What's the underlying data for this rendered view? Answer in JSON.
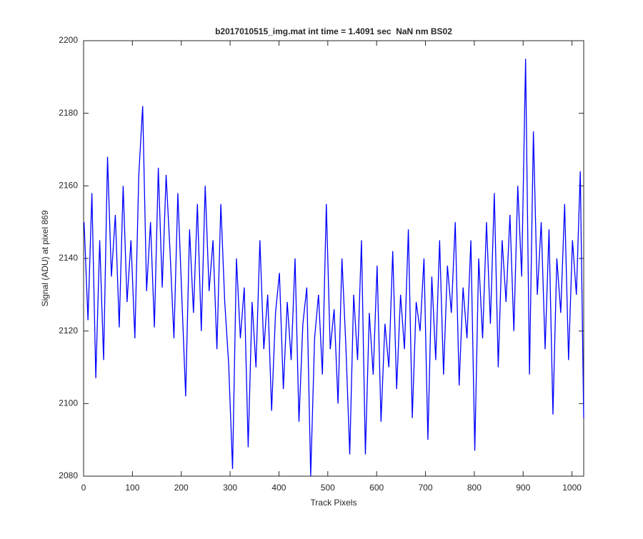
{
  "chart_data": {
    "type": "line",
    "title": "b2017010515_img.mat int time = 1.4091 sec  NaN nm BS02",
    "x_label": "Track Pixels",
    "y_label": "Signal (ADU) at pixel 869",
    "x": [
      1,
      9,
      17,
      25,
      33,
      41,
      49,
      57,
      65,
      73,
      81,
      89,
      97,
      105,
      113,
      121,
      129,
      137,
      145,
      153,
      161,
      169,
      177,
      185,
      193,
      201,
      209,
      217,
      225,
      233,
      241,
      249,
      257,
      265,
      273,
      281,
      289,
      297,
      305,
      313,
      321,
      329,
      337,
      345,
      353,
      361,
      369,
      377,
      385,
      393,
      401,
      409,
      417,
      425,
      433,
      441,
      449,
      457,
      465,
      473,
      481,
      489,
      497,
      505,
      513,
      521,
      529,
      537,
      545,
      553,
      561,
      569,
      577,
      585,
      593,
      601,
      609,
      617,
      625,
      633,
      641,
      649,
      657,
      665,
      673,
      681,
      689,
      697,
      705,
      713,
      721,
      729,
      737,
      745,
      753,
      761,
      769,
      777,
      785,
      793,
      801,
      809,
      817,
      825,
      833,
      841,
      849,
      857,
      865,
      873,
      881,
      889,
      897,
      905,
      913,
      921,
      929,
      937,
      945,
      953,
      961,
      969,
      977,
      985,
      993,
      1001,
      1009,
      1017,
      1024
    ],
    "values": [
      2150,
      2123,
      2158,
      2107,
      2145,
      2112,
      2168,
      2135,
      2152,
      2121,
      2160,
      2128,
      2145,
      2118,
      2163,
      2182,
      2131,
      2150,
      2121,
      2165,
      2132,
      2163,
      2142,
      2118,
      2158,
      2130,
      2102,
      2148,
      2125,
      2155,
      2120,
      2160,
      2131,
      2145,
      2115,
      2155,
      2128,
      2111,
      2082,
      2140,
      2118,
      2132,
      2088,
      2128,
      2110,
      2145,
      2115,
      2130,
      2098,
      2125,
      2136,
      2104,
      2128,
      2112,
      2140,
      2095,
      2122,
      2132,
      2080,
      2118,
      2130,
      2108,
      2155,
      2115,
      2126,
      2100,
      2140,
      2116,
      2086,
      2130,
      2112,
      2145,
      2086,
      2125,
      2108,
      2138,
      2095,
      2122,
      2110,
      2142,
      2104,
      2130,
      2115,
      2148,
      2096,
      2128,
      2120,
      2140,
      2090,
      2135,
      2112,
      2145,
      2108,
      2138,
      2125,
      2150,
      2105,
      2132,
      2118,
      2145,
      2087,
      2140,
      2118,
      2150,
      2122,
      2158,
      2110,
      2145,
      2128,
      2152,
      2120,
      2160,
      2135,
      2195,
      2108,
      2175,
      2130,
      2150,
      2115,
      2148,
      2097,
      2140,
      2125,
      2155,
      2112,
      2145,
      2130,
      2164,
      2096
    ],
    "color": "#0000ff",
    "xlim": [
      0,
      1024
    ],
    "ylim": [
      2080,
      2200
    ],
    "xticks": [
      0,
      100,
      200,
      300,
      400,
      500,
      600,
      700,
      800,
      900,
      1000
    ],
    "yticks": [
      2080,
      2100,
      2120,
      2140,
      2160,
      2180,
      2200
    ],
    "grid": false
  }
}
